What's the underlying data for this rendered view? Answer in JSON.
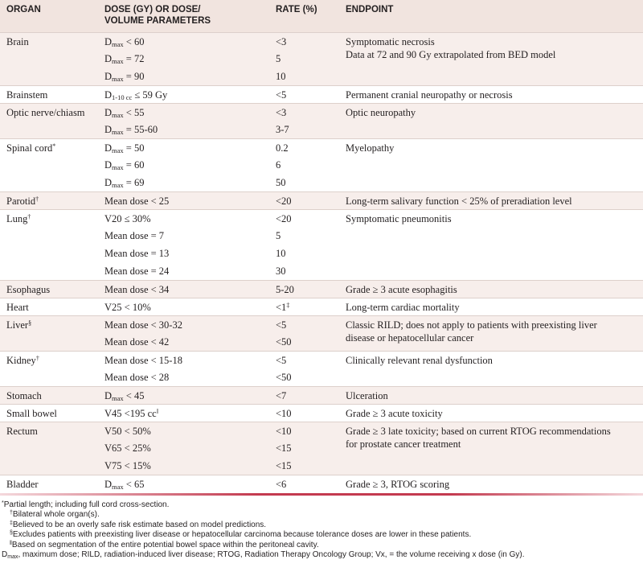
{
  "header": {
    "columns": [
      [
        "ORGAN"
      ],
      [
        "DOSE (GY) OR DOSE/",
        "VOLUME PARAMETERS"
      ],
      [
        "RATE (%)"
      ],
      [
        "ENDPOINT"
      ]
    ]
  },
  "table": {
    "rows": [
      {
        "organ": [
          {
            "text": "Brain"
          }
        ],
        "entries": [
          {
            "dose": [
              {
                "text": "D"
              },
              {
                "sub": "max"
              },
              {
                "text": " < 60"
              }
            ],
            "rate": [
              {
                "text": "<3"
              }
            ]
          },
          {
            "dose": [
              {
                "text": "D"
              },
              {
                "sub": "max"
              },
              {
                "text": " = 72"
              }
            ],
            "rate": [
              {
                "text": "5"
              }
            ]
          },
          {
            "dose": [
              {
                "text": "D"
              },
              {
                "sub": "max"
              },
              {
                "text": " = 90"
              }
            ],
            "rate": [
              {
                "text": "10"
              }
            ]
          }
        ],
        "endpoint": [
          "Symptomatic necrosis",
          "Data at 72 and 90 Gy extrapolated from BED model"
        ]
      },
      {
        "organ": [
          {
            "text": "Brainstem"
          }
        ],
        "entries": [
          {
            "dose": [
              {
                "text": "D"
              },
              {
                "sub": "1-10 cc"
              },
              {
                "text": " ≤ 59 Gy"
              }
            ],
            "rate": [
              {
                "text": "<5"
              }
            ]
          }
        ],
        "endpoint": [
          "Permanent cranial neuropathy or necrosis"
        ]
      },
      {
        "organ": [
          {
            "text": "Optic nerve/chiasm"
          }
        ],
        "entries": [
          {
            "dose": [
              {
                "text": "D"
              },
              {
                "sub": "max"
              },
              {
                "text": " < 55"
              }
            ],
            "rate": [
              {
                "text": "<3"
              }
            ]
          },
          {
            "dose": [
              {
                "text": "D"
              },
              {
                "sub": "max"
              },
              {
                "text": " = 55-60"
              }
            ],
            "rate": [
              {
                "text": "3-7"
              }
            ]
          }
        ],
        "endpoint": [
          "Optic neuropathy"
        ]
      },
      {
        "organ": [
          {
            "text": "Spinal cord"
          },
          {
            "sup": "*"
          }
        ],
        "entries": [
          {
            "dose": [
              {
                "text": "D"
              },
              {
                "sub": "max"
              },
              {
                "text": " = 50"
              }
            ],
            "rate": [
              {
                "text": "0.2"
              }
            ]
          },
          {
            "dose": [
              {
                "text": "D"
              },
              {
                "sub": "max"
              },
              {
                "text": " = 60"
              }
            ],
            "rate": [
              {
                "text": "6"
              }
            ]
          },
          {
            "dose": [
              {
                "text": "D"
              },
              {
                "sub": "max"
              },
              {
                "text": " = 69"
              }
            ],
            "rate": [
              {
                "text": "50"
              }
            ]
          }
        ],
        "endpoint": [
          "Myelopathy"
        ]
      },
      {
        "organ": [
          {
            "text": "Parotid"
          },
          {
            "sup": "†"
          }
        ],
        "entries": [
          {
            "dose": [
              {
                "text": "Mean dose < 25"
              }
            ],
            "rate": [
              {
                "text": "<20"
              }
            ]
          }
        ],
        "endpoint": [
          "Long-term salivary function < 25% of preradiation level"
        ]
      },
      {
        "organ": [
          {
            "text": "Lung"
          },
          {
            "sup": "†"
          }
        ],
        "entries": [
          {
            "dose": [
              {
                "text": "V20 ≤ 30%"
              }
            ],
            "rate": [
              {
                "text": "<20"
              }
            ]
          },
          {
            "dose": [
              {
                "text": "Mean dose = 7"
              }
            ],
            "rate": [
              {
                "text": "5"
              }
            ]
          },
          {
            "dose": [
              {
                "text": "Mean dose = 13"
              }
            ],
            "rate": [
              {
                "text": "10"
              }
            ]
          },
          {
            "dose": [
              {
                "text": "Mean dose = 24"
              }
            ],
            "rate": [
              {
                "text": "30"
              }
            ]
          }
        ],
        "endpoint": [
          "Symptomatic pneumonitis"
        ]
      },
      {
        "organ": [
          {
            "text": "Esophagus"
          }
        ],
        "entries": [
          {
            "dose": [
              {
                "text": "Mean dose < 34"
              }
            ],
            "rate": [
              {
                "text": "5-20"
              }
            ]
          }
        ],
        "endpoint": [
          "Grade ≥ 3 acute esophagitis"
        ]
      },
      {
        "organ": [
          {
            "text": "Heart"
          }
        ],
        "entries": [
          {
            "dose": [
              {
                "text": "V25 < 10%"
              }
            ],
            "rate": [
              {
                "text": "<1"
              },
              {
                "sup": "‡"
              }
            ]
          }
        ],
        "endpoint": [
          "Long-term cardiac mortality"
        ]
      },
      {
        "organ": [
          {
            "text": "Liver"
          },
          {
            "sup": "§"
          }
        ],
        "entries": [
          {
            "dose": [
              {
                "text": "Mean dose < 30-32"
              }
            ],
            "rate": [
              {
                "text": "<5"
              }
            ]
          },
          {
            "dose": [
              {
                "text": "Mean dose < 42"
              }
            ],
            "rate": [
              {
                "text": "<50"
              }
            ]
          }
        ],
        "endpoint": [
          "Classic RILD; does not apply to patients with preexisting liver disease or hepatocellular cancer"
        ]
      },
      {
        "organ": [
          {
            "text": "Kidney"
          },
          {
            "sup": "†"
          }
        ],
        "entries": [
          {
            "dose": [
              {
                "text": "Mean dose < 15-18"
              }
            ],
            "rate": [
              {
                "text": "<5"
              }
            ]
          },
          {
            "dose": [
              {
                "text": "Mean dose < 28"
              }
            ],
            "rate": [
              {
                "text": "<50"
              }
            ]
          }
        ],
        "endpoint": [
          "Clinically relevant renal dysfunction"
        ]
      },
      {
        "organ": [
          {
            "text": "Stomach"
          }
        ],
        "entries": [
          {
            "dose": [
              {
                "text": "D"
              },
              {
                "sub": "max"
              },
              {
                "text": " < 45"
              }
            ],
            "rate": [
              {
                "text": "<7"
              }
            ]
          }
        ],
        "endpoint": [
          "Ulceration"
        ]
      },
      {
        "organ": [
          {
            "text": "Small bowel"
          }
        ],
        "entries": [
          {
            "dose": [
              {
                "text": "V45 <195 cc"
              },
              {
                "sup": "‖"
              }
            ],
            "rate": [
              {
                "text": "<10"
              }
            ]
          }
        ],
        "endpoint": [
          "Grade ≥ 3 acute toxicity"
        ]
      },
      {
        "organ": [
          {
            "text": "Rectum"
          }
        ],
        "entries": [
          {
            "dose": [
              {
                "text": "V50 < 50%"
              }
            ],
            "rate": [
              {
                "text": "<10"
              }
            ]
          },
          {
            "dose": [
              {
                "text": "V65 < 25%"
              }
            ],
            "rate": [
              {
                "text": "<15"
              }
            ]
          },
          {
            "dose": [
              {
                "text": "V75 < 15%"
              }
            ],
            "rate": [
              {
                "text": "<15"
              }
            ]
          }
        ],
        "endpoint": [
          "Grade ≥ 3 late toxicity; based on current RTOG recommendations for prostate cancer treatment"
        ]
      },
      {
        "organ": [
          {
            "text": "Bladder"
          }
        ],
        "entries": [
          {
            "dose": [
              {
                "text": "D"
              },
              {
                "sub": "max"
              },
              {
                "text": " < 65"
              }
            ],
            "rate": [
              {
                "text": "<6"
              }
            ]
          }
        ],
        "endpoint": [
          "Grade ≥ 3, RTOG scoring"
        ]
      }
    ]
  },
  "footnotes": [
    [
      {
        "sup": "*"
      },
      {
        "text": "Partial length; including full cord cross-section."
      }
    ],
    [
      {
        "sup": "†"
      },
      {
        "text": "Bilateral whole organ(s)."
      }
    ],
    [
      {
        "sup": "‡"
      },
      {
        "text": "Believed to be an overly safe risk estimate based on model predictions."
      }
    ],
    [
      {
        "sup": "§"
      },
      {
        "text": "Excludes patients with preexisting liver disease or hepatocellular carcinoma because tolerance doses are lower in these patients."
      }
    ],
    [
      {
        "sup": "‖"
      },
      {
        "text": "Based on segmentation of the entire potential bowel space within the peritoneal cavity."
      }
    ],
    [
      {
        "text": "D"
      },
      {
        "sub": "max"
      },
      {
        "text": ", maximum dose; RILD, radiation-induced liver disease; RTOG, Radiation Therapy Oncology Group; Vx, = the volume receiving x dose (in Gy)."
      }
    ]
  ]
}
